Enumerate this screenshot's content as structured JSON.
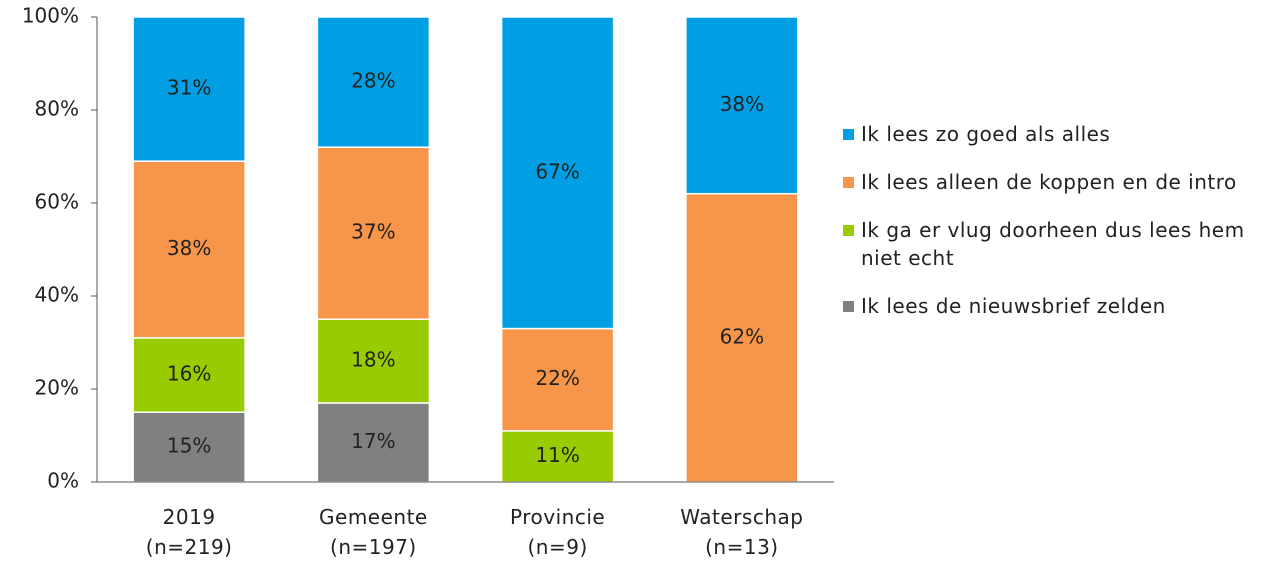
{
  "chart_data": {
    "type": "stacked_bar",
    "categories": [
      "2019\n(n=219)",
      "Gemeente\n(n=197)",
      "Provincie\n(n=9)",
      "Waterschap\n(n=13)"
    ],
    "series": [
      {
        "name": "Ik lees zo goed als alles",
        "color": "#009fe3",
        "values": [
          31,
          28,
          67,
          38
        ],
        "value_labels": [
          "31%",
          "28%",
          "67%",
          "38%"
        ]
      },
      {
        "name": "Ik lees alleen de koppen en de intro",
        "color": "#f7964a",
        "values": [
          38,
          37,
          22,
          62
        ],
        "value_labels": [
          "38%",
          "37%",
          "22%",
          "62%"
        ]
      },
      {
        "name": "Ik ga er vlug doorheen dus lees hem niet echt",
        "color": "#99cc00",
        "values": [
          16,
          18,
          11,
          null
        ],
        "value_labels": [
          "16%",
          "18%",
          "11%",
          null
        ]
      },
      {
        "name": "Ik lees de nieuwsbrief zelden",
        "color": "#808080",
        "values": [
          15,
          17,
          null,
          null
        ],
        "value_labels": [
          "15%",
          "17%",
          null,
          null
        ]
      }
    ],
    "ylim": [
      0,
      100
    ],
    "yticks": [
      {
        "value": 0,
        "label": "0%"
      },
      {
        "value": 20,
        "label": "20%"
      },
      {
        "value": 40,
        "label": "40%"
      },
      {
        "value": 60,
        "label": "60%"
      },
      {
        "value": 80,
        "label": "80%"
      },
      {
        "value": 100,
        "label": "100%"
      }
    ],
    "legend": "right"
  }
}
